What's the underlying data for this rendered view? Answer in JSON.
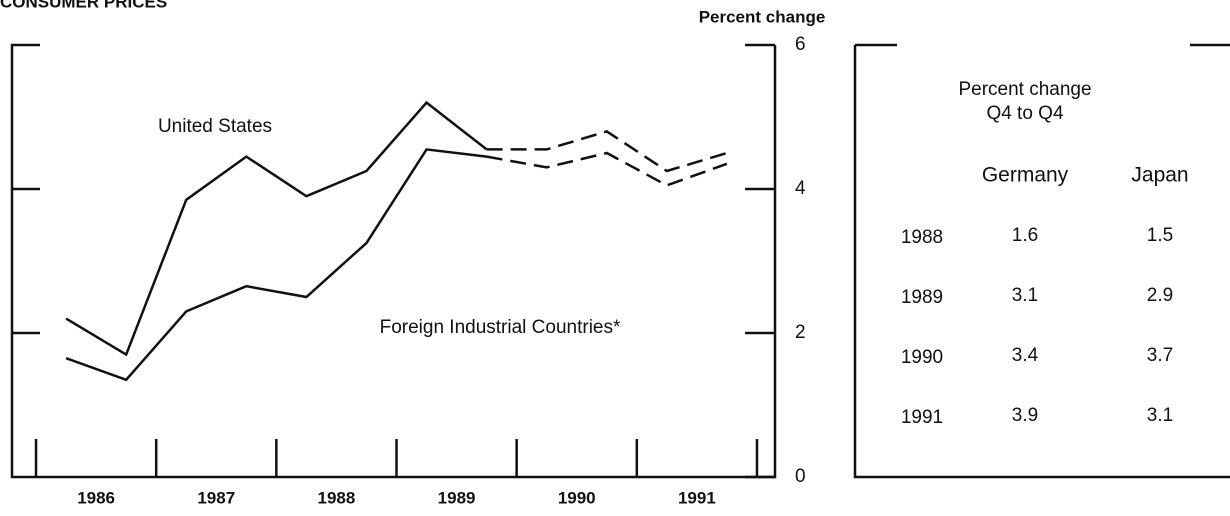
{
  "chart_data": {
    "type": "line",
    "title": "CONSUMER PRICES",
    "y_label": "Percent change",
    "x": [
      1986.25,
      1986.75,
      1987.25,
      1987.75,
      1988.25,
      1988.75,
      1989.25,
      1989.75,
      1990.25,
      1990.75,
      1991.25,
      1991.75
    ],
    "xlim": [
      1985.8,
      1992.15
    ],
    "xticks": [
      {
        "value": 1986.5,
        "label": "1986"
      },
      {
        "value": 1987.5,
        "label": "1987"
      },
      {
        "value": 1988.5,
        "label": "1988"
      },
      {
        "value": 1989.5,
        "label": "1989"
      },
      {
        "value": 1990.5,
        "label": "1990"
      },
      {
        "value": 1991.5,
        "label": "1991"
      }
    ],
    "ylim": [
      0,
      6
    ],
    "yticks": [
      0,
      2,
      4,
      6
    ],
    "y_axis_side": "right",
    "series": [
      {
        "name": "United States",
        "color": "#111111",
        "dashed_after_index": 7,
        "values": [
          2.2,
          1.7,
          3.85,
          4.45,
          3.9,
          4.25,
          5.2,
          4.55,
          4.55,
          4.8,
          4.25,
          4.5
        ]
      },
      {
        "name": "Foreign Industrial Countries*",
        "color": "#111111",
        "dashed_after_index": 7,
        "values": [
          1.65,
          1.35,
          2.3,
          2.65,
          2.5,
          3.25,
          4.55,
          4.45,
          4.3,
          4.5,
          4.05,
          4.35
        ]
      }
    ]
  },
  "table": {
    "title": [
      "Percent change",
      "Q4 to Q4"
    ],
    "columns": [
      "Germany",
      "Japan"
    ],
    "rows": [
      [
        "1988",
        1.6,
        1.5
      ],
      [
        "1989",
        3.1,
        2.9
      ],
      [
        "1990",
        3.4,
        3.7
      ],
      [
        "1991",
        3.9,
        3.1
      ]
    ]
  }
}
